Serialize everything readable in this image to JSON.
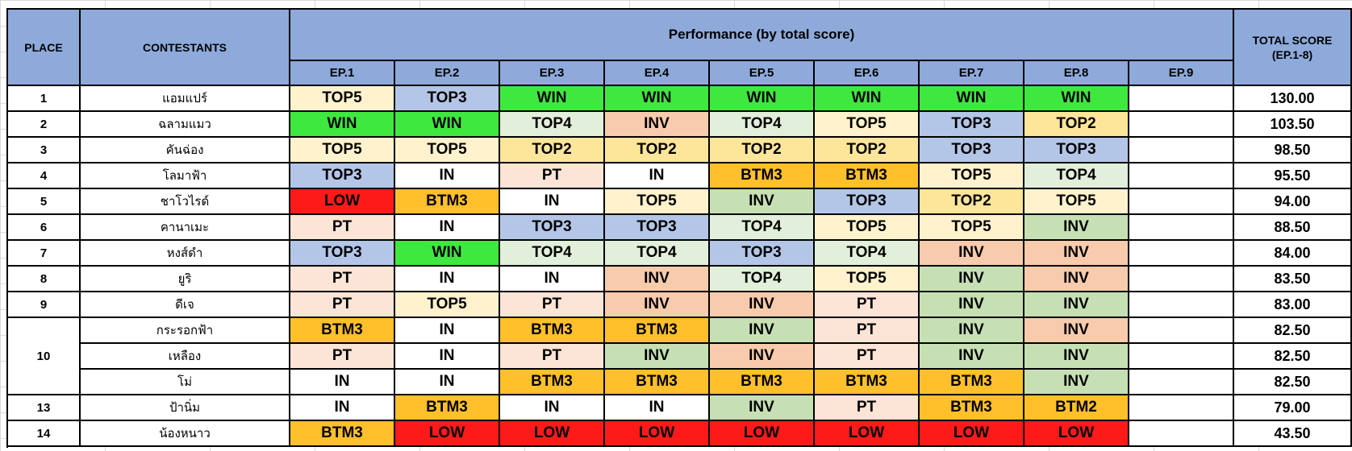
{
  "headers": {
    "place": "PLACE",
    "contestants": "CONTESTANTS",
    "performance": "Performance (by total score)",
    "total_line1": "TOTAL SCORE",
    "total_line2": "(EP.1-8)",
    "episodes": [
      "EP.1",
      "EP.2",
      "EP.3",
      "EP.4",
      "EP.5",
      "EP.6",
      "EP.7",
      "EP.8",
      "EP.9"
    ]
  },
  "result_colors": {
    "WIN": "#3fe83f",
    "TOP2": "#fde59a",
    "TOP3": "#b4c6e7",
    "TOP4": "#e2efda",
    "TOP5": "#fff2cc",
    "IN": "#ffffff",
    "PT": "#fce4d6",
    "INV_peach": "#f8cbad",
    "INV_green": "#c6e0b4",
    "BTM3": "#ffc02b",
    "BTM2": "#ffc02b",
    "LOW": "#ff1a1a",
    "empty": "#ffffff"
  },
  "rows": [
    {
      "place": "1",
      "name": "แอมแปร์",
      "results": [
        "TOP5",
        "TOP3",
        "WIN",
        "WIN",
        "WIN",
        "WIN",
        "WIN",
        "WIN",
        ""
      ],
      "score": "130.00"
    },
    {
      "place": "2",
      "name": "ฉลามแมว",
      "results": [
        "WIN",
        "WIN",
        "TOP4",
        "INV",
        "TOP4",
        "TOP5",
        "TOP3",
        "TOP2",
        ""
      ],
      "score": "103.50"
    },
    {
      "place": "3",
      "name": "คันฉ่อง",
      "results": [
        "TOP5",
        "TOP5",
        "TOP2",
        "TOP2",
        "TOP2",
        "TOP2",
        "TOP3",
        "TOP3",
        ""
      ],
      "score": "98.50"
    },
    {
      "place": "4",
      "name": "โลมาฟ้า",
      "results": [
        "TOP3",
        "IN",
        "PT",
        "IN",
        "BTM3",
        "BTM3",
        "TOP5",
        "TOP4",
        ""
      ],
      "score": "95.50"
    },
    {
      "place": "5",
      "name": "ชาโวไรด์",
      "results": [
        "LOW",
        "BTM3",
        "IN",
        "TOP5",
        "INV",
        "TOP3",
        "TOP2",
        "TOP5",
        ""
      ],
      "score": "94.00"
    },
    {
      "place": "6",
      "name": "คานาเมะ",
      "results": [
        "PT",
        "IN",
        "TOP3",
        "TOP3",
        "TOP4",
        "TOP5",
        "TOP5",
        "INV",
        ""
      ],
      "score": "88.50"
    },
    {
      "place": "7",
      "name": "หงส์ดำ",
      "results": [
        "TOP3",
        "WIN",
        "TOP4",
        "TOP4",
        "TOP3",
        "TOP4",
        "INV",
        "INV",
        ""
      ],
      "score": "84.00"
    },
    {
      "place": "8",
      "name": "ยูริ",
      "results": [
        "PT",
        "IN",
        "IN",
        "INV",
        "TOP4",
        "TOP5",
        "INV",
        "INV",
        ""
      ],
      "score": "83.50"
    },
    {
      "place": "9",
      "name": "ดีเจ",
      "results": [
        "PT",
        "TOP5",
        "PT",
        "INV",
        "INV",
        "PT",
        "INV",
        "INV",
        ""
      ],
      "score": "83.00"
    },
    {
      "place": "10",
      "name": "กระรอกฟ้า",
      "results": [
        "BTM3",
        "IN",
        "BTM3",
        "BTM3",
        "INV",
        "PT",
        "INV",
        "INV",
        ""
      ],
      "score": "82.50"
    },
    {
      "place": "",
      "name": "เหลือง",
      "results": [
        "PT",
        "IN",
        "PT",
        "INV",
        "INV",
        "PT",
        "INV",
        "INV",
        ""
      ],
      "score": "82.50"
    },
    {
      "place": "",
      "name": "โม่",
      "results": [
        "IN",
        "IN",
        "BTM3",
        "BTM3",
        "BTM3",
        "BTM3",
        "BTM3",
        "INV",
        ""
      ],
      "score": "82.50"
    },
    {
      "place": "13",
      "name": "ป้านิ่ม",
      "results": [
        "IN",
        "BTM3",
        "IN",
        "IN",
        "INV",
        "PT",
        "BTM3",
        "BTM2",
        ""
      ],
      "score": "79.00"
    },
    {
      "place": "14",
      "name": "น้องหนาว",
      "results": [
        "BTM3",
        "LOW",
        "LOW",
        "LOW",
        "LOW",
        "LOW",
        "LOW",
        "LOW",
        ""
      ],
      "score": "43.50"
    }
  ],
  "cell_fill_map": [
    [
      "TOP5",
      "TOP3",
      "WIN",
      "WIN",
      "WIN",
      "WIN",
      "WIN",
      "WIN",
      "empty"
    ],
    [
      "WIN",
      "WIN",
      "TOP4",
      "INV_peach",
      "TOP4",
      "TOP5",
      "TOP3",
      "TOP2",
      "empty"
    ],
    [
      "TOP5",
      "TOP5",
      "TOP2",
      "TOP2",
      "TOP2",
      "TOP2",
      "TOP3",
      "TOP3",
      "empty"
    ],
    [
      "TOP3",
      "IN",
      "PT",
      "IN",
      "BTM3",
      "BTM3",
      "TOP5",
      "TOP4",
      "empty"
    ],
    [
      "LOW",
      "BTM3",
      "IN",
      "TOP5",
      "INV_green",
      "TOP3",
      "TOP2",
      "TOP5",
      "empty"
    ],
    [
      "PT",
      "IN",
      "TOP3",
      "TOP3",
      "TOP4",
      "TOP5",
      "TOP5",
      "INV_green",
      "empty"
    ],
    [
      "TOP3",
      "WIN",
      "TOP4",
      "TOP4",
      "TOP3",
      "TOP4",
      "INV_peach",
      "INV_peach",
      "empty"
    ],
    [
      "PT",
      "IN",
      "IN",
      "INV_peach",
      "TOP4",
      "TOP5",
      "INV_green",
      "INV_peach",
      "empty"
    ],
    [
      "PT",
      "TOP5",
      "PT",
      "INV_peach",
      "INV_peach",
      "PT",
      "INV_green",
      "INV_green",
      "empty"
    ],
    [
      "BTM3",
      "IN",
      "BTM3",
      "BTM3",
      "INV_green",
      "PT",
      "INV_green",
      "INV_peach",
      "empty"
    ],
    [
      "PT",
      "IN",
      "PT",
      "INV_green",
      "INV_peach",
      "PT",
      "INV_green",
      "INV_green",
      "empty"
    ],
    [
      "IN",
      "IN",
      "BTM3",
      "BTM3",
      "BTM3",
      "BTM3",
      "BTM3",
      "INV_green",
      "empty"
    ],
    [
      "IN",
      "BTM3",
      "IN",
      "IN",
      "INV_green",
      "PT",
      "BTM3",
      "BTM2",
      "empty"
    ],
    [
      "BTM3",
      "LOW",
      "LOW",
      "LOW",
      "LOW",
      "LOW",
      "LOW",
      "LOW",
      "empty"
    ]
  ]
}
